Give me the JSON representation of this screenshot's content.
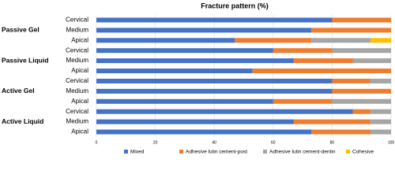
{
  "chart_data": {
    "type": "bar",
    "orientation": "horizontal",
    "stacked": true,
    "title": "Fracture pattern (%)",
    "groups": [
      "Passive Gel",
      "Passive Liquid",
      "Active Gel",
      "Active Liquid"
    ],
    "categories": [
      "Cervical",
      "Medium",
      "Apical",
      "Cervical",
      "Medium",
      "Apical",
      "Cervical",
      "Medium",
      "Apical",
      "Cervical",
      "Medium",
      "Apical"
    ],
    "series": [
      {
        "name": "Mixed",
        "color": "#4472c4",
        "values": [
          80,
          73,
          47,
          60,
          67,
          53,
          80,
          80,
          60,
          87,
          67,
          73
        ]
      },
      {
        "name": "Adhesive lutin cement-post",
        "color": "#ed7d31",
        "values": [
          20,
          27,
          26,
          20,
          20,
          47,
          13,
          20,
          20,
          6,
          26,
          20
        ]
      },
      {
        "name": "Adhesive lutin cement-dentin",
        "color": "#a5a5a5",
        "values": [
          0,
          0,
          20,
          20,
          13,
          0,
          7,
          0,
          20,
          7,
          7,
          7
        ]
      },
      {
        "name": "Cohesive",
        "color": "#ffc000",
        "values": [
          0,
          0,
          7,
          0,
          0,
          0,
          0,
          0,
          0,
          0,
          0,
          0
        ]
      }
    ],
    "xlim": [
      0,
      100
    ],
    "xticks": [
      0,
      20,
      40,
      60,
      80,
      100
    ],
    "grid": true
  }
}
